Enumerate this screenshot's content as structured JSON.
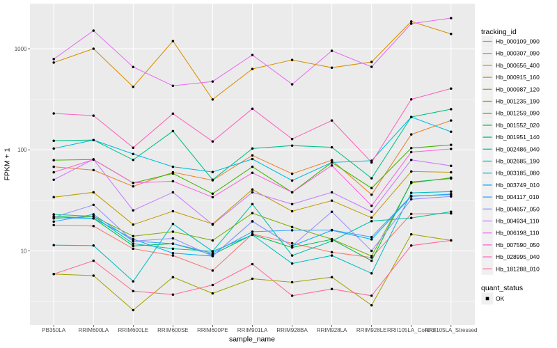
{
  "chart_data": {
    "type": "line",
    "xlabel": "sample_name",
    "ylabel": "FPKM + 1",
    "y_scale": "log10",
    "ylim": [
      1.85,
      2780
    ],
    "yticks": [
      10,
      100,
      1000
    ],
    "y_minor_ticks": [
      3.162,
      31.62,
      316.2
    ],
    "grid": true,
    "panel_bg": "#EBEBEB",
    "grid_color": "#FFFFFF",
    "tick_color": "#333333",
    "tick_label_color": "#4D4D4D",
    "point_color": "#000000",
    "categories": [
      "PB350LA",
      "RRIM600LA",
      "RRIM600LE",
      "RRIM600SE",
      "RRIM600PE",
      "RRIM901LA",
      "RRIM928BA",
      "RRIM928LA",
      "RRIM928LE",
      "RRII105LA_Control",
      "RRII105LA_Stressed"
    ],
    "series": [
      {
        "name": "Hb_000109_090",
        "color": "#F8766D",
        "values": [
          18,
          17.6,
          10.5,
          9,
          6.4,
          14.7,
          11.9,
          9.7,
          8.6,
          23.2,
          23.5
        ]
      },
      {
        "name": "Hb_000307_090",
        "color": "#EA8331",
        "values": [
          68,
          63,
          43.5,
          60,
          50,
          88,
          58,
          79,
          36,
          142,
          195
        ]
      },
      {
        "name": "Hb_000656_400",
        "color": "#D89000",
        "values": [
          730,
          1000,
          420,
          1190,
          315,
          630,
          775,
          650,
          740,
          1860,
          1400
        ]
      },
      {
        "name": "Hb_000915_160",
        "color": "#C09B00",
        "values": [
          34,
          38,
          18.2,
          24.7,
          18.5,
          40.5,
          24.7,
          31.4,
          21.3,
          61,
          60
        ]
      },
      {
        "name": "Hb_000987_120",
        "color": "#A3A500",
        "values": [
          5.9,
          5.7,
          2.6,
          5.5,
          3.8,
          5.3,
          4.9,
          5.5,
          2.9,
          14.6,
          12.7
        ]
      },
      {
        "name": "Hb_001235_190",
        "color": "#7CAE00",
        "values": [
          21,
          22,
          14,
          15.5,
          12.7,
          23.6,
          17.2,
          13.1,
          8.9,
          47,
          53
        ]
      },
      {
        "name": "Hb_001259_090",
        "color": "#39B600",
        "values": [
          79,
          80,
          47,
          58.4,
          36.8,
          68,
          38,
          75,
          41.8,
          104,
          112
        ]
      },
      {
        "name": "Hb_001552_020",
        "color": "#00BB4E",
        "values": [
          22,
          21,
          11.2,
          11.8,
          9.2,
          14.5,
          10.8,
          13,
          8,
          48,
          52
        ]
      },
      {
        "name": "Hb_001951_140",
        "color": "#00C087",
        "values": [
          123,
          125,
          79.5,
          153,
          50.5,
          103,
          110,
          106,
          52.3,
          211,
          252
        ]
      },
      {
        "name": "Hb_002486_040",
        "color": "#00C1A2",
        "values": [
          23,
          22,
          11.8,
          10.5,
          9.9,
          29,
          9,
          12.5,
          19.7,
          21.2,
          24.4
        ]
      },
      {
        "name": "Hb_002685_190",
        "color": "#00BFC4",
        "values": [
          11.4,
          11.3,
          5,
          18.5,
          9.9,
          14.4,
          7.5,
          9,
          6,
          37.5,
          38.6
        ]
      },
      {
        "name": "Hb_003185_080",
        "color": "#00BAE0",
        "values": [
          103,
          125,
          91,
          68,
          60.4,
          81,
          49.7,
          75,
          78,
          211,
          151
        ]
      },
      {
        "name": "Hb_003749_010",
        "color": "#00B0F6",
        "values": [
          21.3,
          21,
          13.1,
          9.5,
          8.9,
          19.6,
          11.2,
          16,
          13,
          34.6,
          36.5
        ]
      },
      {
        "name": "Hb_004117_010",
        "color": "#35A2FF",
        "values": [
          19.5,
          23,
          12.5,
          11.8,
          9.5,
          15.5,
          16,
          16.1,
          13.7,
          35,
          36
        ]
      },
      {
        "name": "Hb_004657_050",
        "color": "#9590FF",
        "values": [
          21.5,
          28.5,
          12.5,
          13.3,
          8.9,
          19.6,
          11.2,
          24.4,
          10,
          32.4,
          34.6
        ]
      },
      {
        "name": "Hb_004934_110",
        "color": "#C77CFF",
        "values": [
          50.5,
          80.5,
          25.2,
          38,
          18.2,
          38,
          29,
          38,
          24.4,
          79.5,
          69.5
        ]
      },
      {
        "name": "Hb_006198_110",
        "color": "#E76BF3",
        "values": [
          789,
          1510,
          660,
          430,
          474,
          867,
          445,
          953,
          662,
          1770,
          2010
        ]
      },
      {
        "name": "Hb_007590_050",
        "color": "#FA62DB",
        "values": [
          60,
          80,
          47,
          48.9,
          34,
          59.2,
          38,
          70,
          28,
          95,
          102
        ]
      },
      {
        "name": "Hb_028995_040",
        "color": "#FF62BC",
        "values": [
          229,
          218,
          105,
          228,
          121,
          255,
          128,
          195,
          75,
          316,
          404
        ]
      },
      {
        "name": "Hb_181288_010",
        "color": "#FF6A98",
        "values": [
          5.9,
          8,
          4,
          3.7,
          4.6,
          7.4,
          3.6,
          4.2,
          3.6,
          11.3,
          12.7
        ]
      }
    ],
    "legend": {
      "position": "right",
      "tracking_title": "tracking_id",
      "quant_title": "quant_status",
      "quant_label": "OK",
      "quant_key_shape": "black-square"
    }
  }
}
